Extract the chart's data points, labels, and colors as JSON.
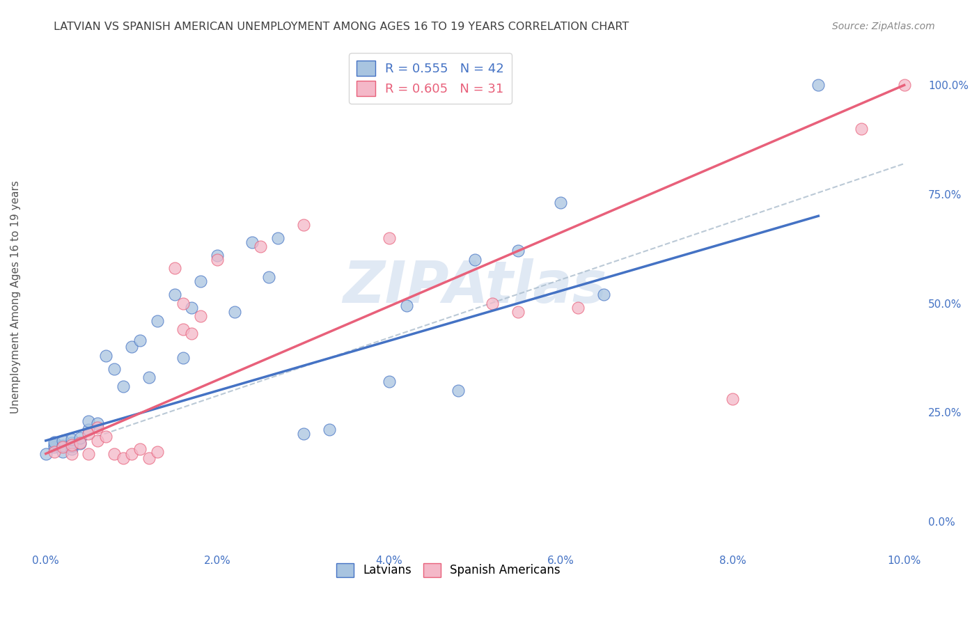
{
  "title": "LATVIAN VS SPANISH AMERICAN UNEMPLOYMENT AMONG AGES 16 TO 19 YEARS CORRELATION CHART",
  "source": "Source: ZipAtlas.com",
  "ylabel": "Unemployment Among Ages 16 to 19 years",
  "watermark": "ZIPAtlas",
  "legend_latvian": "Latvians",
  "legend_spanish": "Spanish Americans",
  "R_latvian": 0.555,
  "N_latvian": 42,
  "R_spanish": 0.605,
  "N_spanish": 31,
  "color_latvian": "#A8C4E0",
  "color_spanish": "#F4B8C8",
  "line_color_latvian": "#4472C4",
  "line_color_spanish": "#E8607A",
  "background_color": "#FFFFFF",
  "grid_color": "#CCCCCC",
  "title_color": "#404040",
  "source_color": "#888888",
  "watermark_color": "#C8D8EC",
  "right_ytick_values": [
    0.0,
    0.25,
    0.5,
    0.75,
    1.0
  ],
  "xlim": [
    -0.002,
    0.102
  ],
  "ylim": [
    -0.07,
    1.1
  ],
  "latvian_x": [
    0.0,
    0.001,
    0.001,
    0.001,
    0.002,
    0.002,
    0.002,
    0.003,
    0.003,
    0.003,
    0.003,
    0.004,
    0.004,
    0.005,
    0.005,
    0.006,
    0.007,
    0.008,
    0.009,
    0.01,
    0.011,
    0.012,
    0.013,
    0.015,
    0.016,
    0.017,
    0.018,
    0.02,
    0.022,
    0.024,
    0.026,
    0.027,
    0.03,
    0.033,
    0.04,
    0.042,
    0.048,
    0.05,
    0.055,
    0.06,
    0.065,
    0.09
  ],
  "latvian_y": [
    0.155,
    0.17,
    0.175,
    0.182,
    0.16,
    0.173,
    0.185,
    0.165,
    0.172,
    0.18,
    0.188,
    0.178,
    0.192,
    0.21,
    0.23,
    0.225,
    0.38,
    0.35,
    0.31,
    0.4,
    0.415,
    0.33,
    0.46,
    0.52,
    0.375,
    0.49,
    0.55,
    0.61,
    0.48,
    0.64,
    0.56,
    0.65,
    0.2,
    0.21,
    0.32,
    0.495,
    0.3,
    0.6,
    0.62,
    0.73,
    0.52,
    1.0
  ],
  "spanish_x": [
    0.001,
    0.002,
    0.003,
    0.003,
    0.004,
    0.005,
    0.005,
    0.006,
    0.006,
    0.007,
    0.008,
    0.009,
    0.01,
    0.011,
    0.012,
    0.013,
    0.015,
    0.016,
    0.016,
    0.017,
    0.018,
    0.02,
    0.025,
    0.03,
    0.04,
    0.052,
    0.055,
    0.062,
    0.08,
    0.095,
    0.1
  ],
  "spanish_y": [
    0.16,
    0.17,
    0.155,
    0.175,
    0.18,
    0.155,
    0.2,
    0.185,
    0.215,
    0.195,
    0.155,
    0.145,
    0.155,
    0.165,
    0.145,
    0.16,
    0.58,
    0.44,
    0.5,
    0.43,
    0.47,
    0.6,
    0.63,
    0.68,
    0.65,
    0.5,
    0.48,
    0.49,
    0.28,
    0.9,
    1.0
  ],
  "blue_line_x0": 0.0,
  "blue_line_y0": 0.185,
  "blue_line_x1": 0.09,
  "blue_line_y1": 0.7,
  "pink_line_x0": 0.0,
  "pink_line_y0": 0.155,
  "pink_line_x1": 0.1,
  "pink_line_y1": 1.0,
  "dash_line_x0": 0.0,
  "dash_line_y0": 0.155,
  "dash_line_x1": 0.1,
  "dash_line_y1": 0.82
}
